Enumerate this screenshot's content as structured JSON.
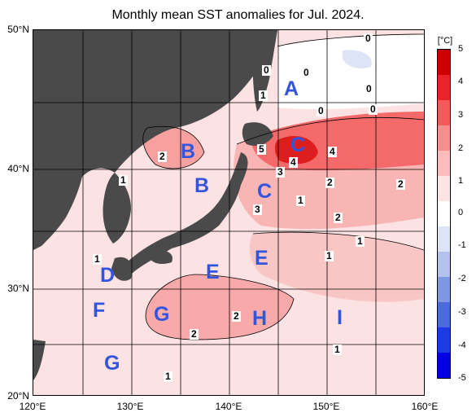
{
  "title": "Monthly mean SST anomalies for Jul. 2024.",
  "lat_labels": [
    "50°N",
    "40°N",
    "30°N",
    "20°N"
  ],
  "lon_labels": [
    "120°E",
    "130°E",
    "140°E",
    "150°E",
    "160°E"
  ],
  "colorbar": {
    "unit": "[°C]",
    "ticks": [
      "5",
      "4",
      "3",
      "2",
      "1",
      "0",
      "-1",
      "-2",
      "-3",
      "-4",
      "-5"
    ],
    "colors": [
      "#cc0000",
      "#e8242b",
      "#f45a5a",
      "#f88e8e",
      "#fcbcbc",
      "#fde4e4",
      "#ffffff",
      "#dde4f6",
      "#b4c3ee",
      "#7f98e3",
      "#4a6bde",
      "#1a3ce0",
      "#0000e0"
    ]
  },
  "colors": {
    "land": "#4a4a4a",
    "sea_base": "#fcdcdc"
  },
  "regions": [
    "A",
    "B",
    "B",
    "C",
    "C",
    "D",
    "E",
    "E",
    "F",
    "G",
    "G",
    "H",
    "I"
  ],
  "contour_labels": [
    "0",
    "0",
    "0",
    "0",
    "0",
    "0",
    "1",
    "2",
    "1",
    "5",
    "4",
    "4",
    "3",
    "1",
    "2",
    "2",
    "1",
    "3",
    "2",
    "1",
    "1",
    "2",
    "2",
    "1",
    "1"
  ]
}
